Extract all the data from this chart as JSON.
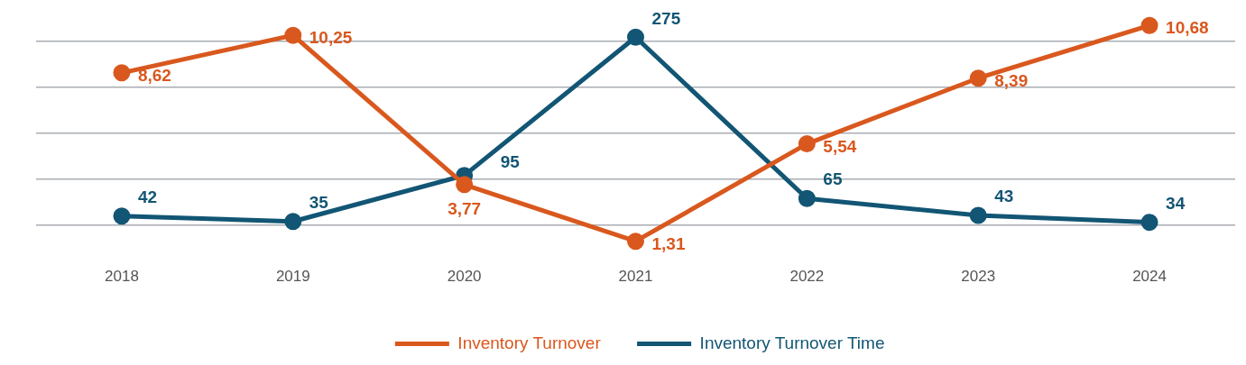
{
  "chart_data": {
    "type": "line",
    "categories": [
      "2018",
      "2019",
      "2020",
      "2021",
      "2022",
      "2023",
      "2024"
    ],
    "series": [
      {
        "name": "Inventory Turnover",
        "color": "#d9581e",
        "values": [
          8.62,
          10.25,
          3.77,
          1.31,
          5.54,
          8.39,
          10.68
        ],
        "value_labels": [
          "8,62",
          "10,25",
          "3,77",
          "1,31",
          "5,54",
          "8,39",
          "10,68"
        ]
      },
      {
        "name": "Inventory Turnover Time",
        "color": "#125574",
        "axis": "y2",
        "values": [
          42,
          35,
          95,
          275,
          65,
          43,
          34
        ],
        "value_labels": [
          "42",
          "35",
          "95",
          "275",
          "65",
          "43",
          "34"
        ]
      }
    ],
    "yticks": [
      {
        "value": 2,
        "label": null
      },
      {
        "value": 4,
        "label": null
      },
      {
        "value": 6,
        "label": null
      },
      {
        "value": 8,
        "label": null
      },
      {
        "value": 10,
        "label": null
      }
    ],
    "grid": "y",
    "tick_labels": "x",
    "legend": "bottom",
    "marker": "circle",
    "line_style": "solid"
  }
}
